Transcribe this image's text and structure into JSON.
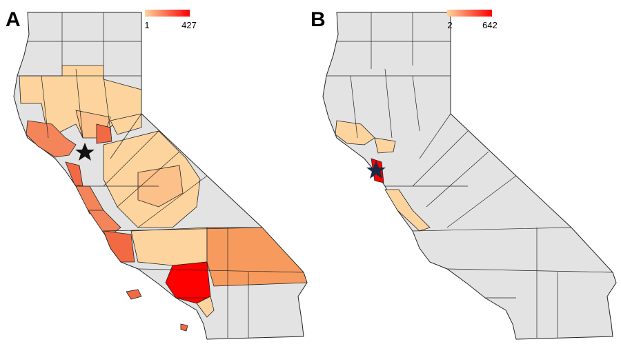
{
  "panels": [
    {
      "label": "A",
      "legend": {
        "min": 1,
        "max": 427,
        "colors": [
          "#fdd49e",
          "#ff0000"
        ]
      }
    },
    {
      "label": "B",
      "legend": {
        "min": 2,
        "max": 642,
        "colors": [
          "#fdd49e",
          "#ff0000"
        ]
      }
    }
  ]
}
